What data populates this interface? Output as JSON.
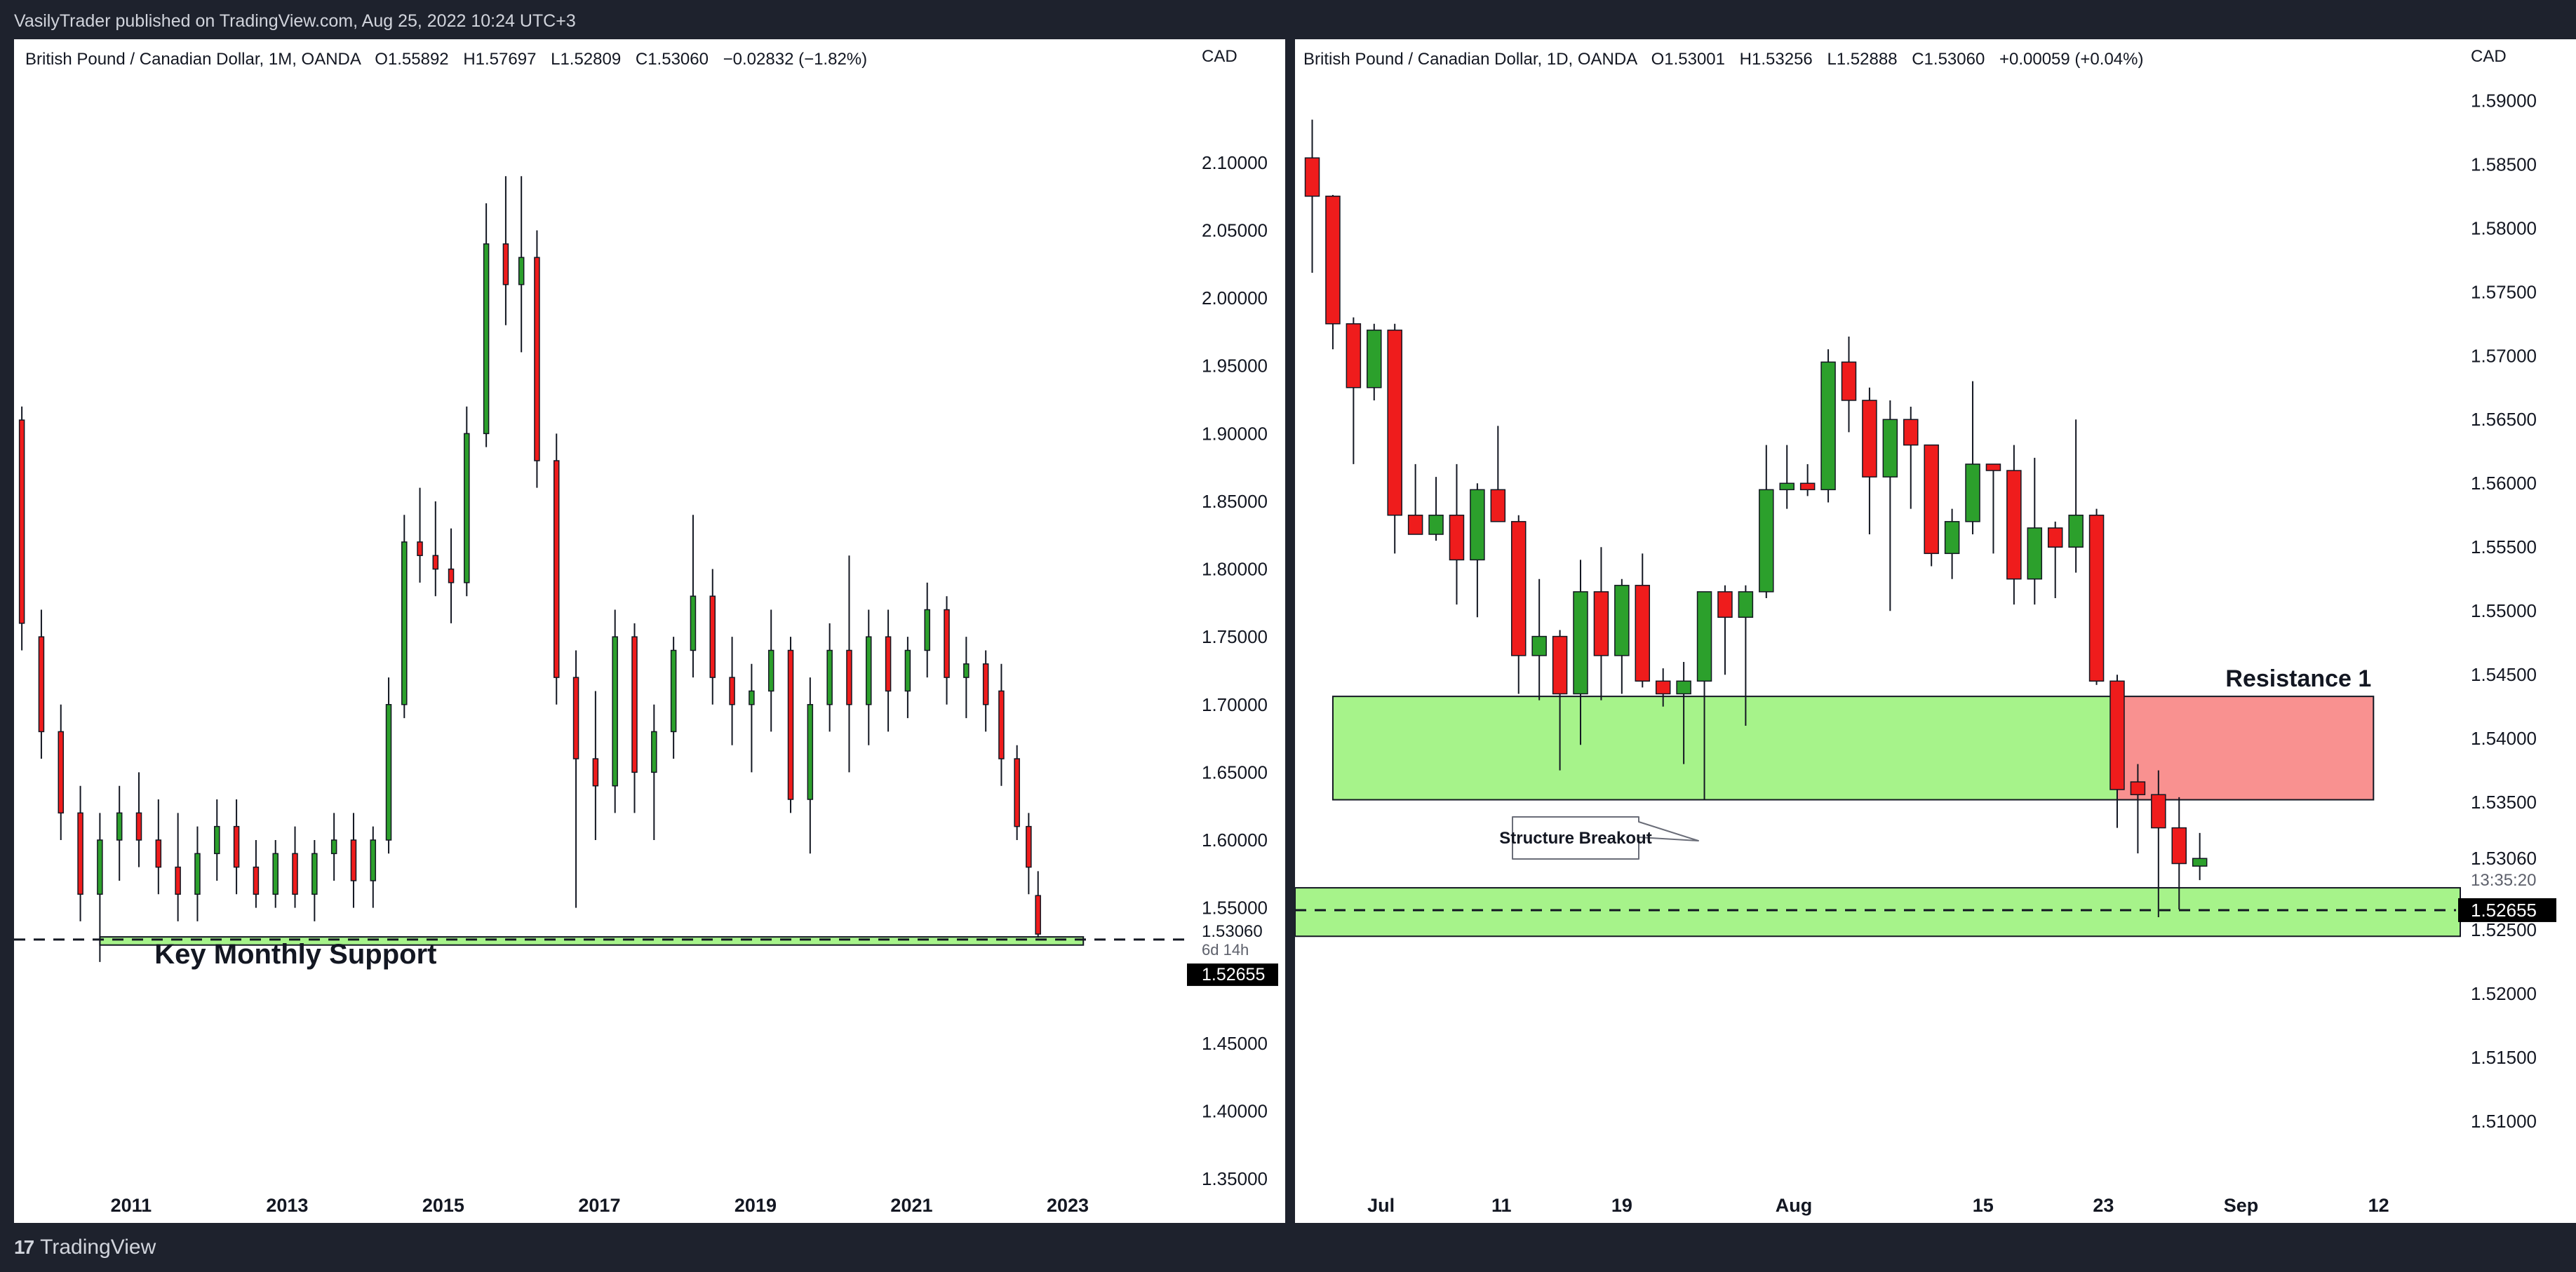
{
  "header": {
    "published_text": "VasilyTrader published on TradingView.com, Aug 25, 2022 10:24 UTC+3"
  },
  "footer": {
    "logo_text": "TradingView"
  },
  "colors": {
    "up": "#2ca02c",
    "down": "#ef1c1c",
    "support_zone": "#a6f38a",
    "resistance_zone": "#f99190",
    "price_tag_bg": "#000000"
  },
  "chart_data": [
    {
      "type": "candlestick",
      "title": "British Pound / Canadian Dollar, 1M, OANDA",
      "ohlc_text": {
        "open": "O1.55892",
        "high": "H1.57697",
        "low": "L1.52809",
        "close": "C1.53060",
        "change": "−0.02832 (−1.82%)"
      },
      "currency": "CAD",
      "yticks": [
        "2.10000",
        "2.05000",
        "2.00000",
        "1.95000",
        "1.90000",
        "1.85000",
        "1.80000",
        "1.75000",
        "1.70000",
        "1.65000",
        "1.60000",
        "1.55000",
        "1.45000",
        "1.40000",
        "1.35000"
      ],
      "xticks": [
        "2011",
        "2013",
        "2015",
        "2017",
        "2019",
        "2021",
        "2023"
      ],
      "ylim": [
        1.35,
        2.16
      ],
      "xlim": [
        2009.5,
        2024.6
      ],
      "last_price": "1.53060",
      "countdown": "6d 14h",
      "line_price": "1.52655",
      "support_zone": [
        1.5225,
        1.5285
      ],
      "annotations": [
        "Key Monthly Support"
      ],
      "candles": [
        {
          "t": 2009.6,
          "o": 1.91,
          "h": 1.92,
          "l": 1.74,
          "c": 1.76
        },
        {
          "t": 2009.85,
          "o": 1.75,
          "h": 1.77,
          "l": 1.66,
          "c": 1.68
        },
        {
          "t": 2010.1,
          "o": 1.68,
          "h": 1.7,
          "l": 1.6,
          "c": 1.62
        },
        {
          "t": 2010.35,
          "o": 1.62,
          "h": 1.64,
          "l": 1.54,
          "c": 1.56
        },
        {
          "t": 2010.6,
          "o": 1.56,
          "h": 1.62,
          "l": 1.51,
          "c": 1.6
        },
        {
          "t": 2010.85,
          "o": 1.6,
          "h": 1.64,
          "l": 1.57,
          "c": 1.62
        },
        {
          "t": 2011.1,
          "o": 1.62,
          "h": 1.65,
          "l": 1.58,
          "c": 1.6
        },
        {
          "t": 2011.35,
          "o": 1.6,
          "h": 1.63,
          "l": 1.56,
          "c": 1.58
        },
        {
          "t": 2011.6,
          "o": 1.58,
          "h": 1.62,
          "l": 1.54,
          "c": 1.56
        },
        {
          "t": 2011.85,
          "o": 1.56,
          "h": 1.61,
          "l": 1.54,
          "c": 1.59
        },
        {
          "t": 2012.1,
          "o": 1.59,
          "h": 1.63,
          "l": 1.57,
          "c": 1.61
        },
        {
          "t": 2012.35,
          "o": 1.61,
          "h": 1.63,
          "l": 1.56,
          "c": 1.58
        },
        {
          "t": 2012.6,
          "o": 1.58,
          "h": 1.6,
          "l": 1.55,
          "c": 1.56
        },
        {
          "t": 2012.85,
          "o": 1.56,
          "h": 1.6,
          "l": 1.55,
          "c": 1.59
        },
        {
          "t": 2013.1,
          "o": 1.59,
          "h": 1.61,
          "l": 1.55,
          "c": 1.56
        },
        {
          "t": 2013.35,
          "o": 1.56,
          "h": 1.6,
          "l": 1.54,
          "c": 1.59
        },
        {
          "t": 2013.6,
          "o": 1.59,
          "h": 1.62,
          "l": 1.57,
          "c": 1.6
        },
        {
          "t": 2013.85,
          "o": 1.6,
          "h": 1.62,
          "l": 1.55,
          "c": 1.57
        },
        {
          "t": 2014.1,
          "o": 1.57,
          "h": 1.61,
          "l": 1.55,
          "c": 1.6
        },
        {
          "t": 2014.3,
          "o": 1.6,
          "h": 1.72,
          "l": 1.59,
          "c": 1.7
        },
        {
          "t": 2014.5,
          "o": 1.7,
          "h": 1.84,
          "l": 1.69,
          "c": 1.82
        },
        {
          "t": 2014.7,
          "o": 1.82,
          "h": 1.86,
          "l": 1.79,
          "c": 1.81
        },
        {
          "t": 2014.9,
          "o": 1.81,
          "h": 1.85,
          "l": 1.78,
          "c": 1.8
        },
        {
          "t": 2015.1,
          "o": 1.8,
          "h": 1.83,
          "l": 1.76,
          "c": 1.79
        },
        {
          "t": 2015.3,
          "o": 1.79,
          "h": 1.92,
          "l": 1.78,
          "c": 1.9
        },
        {
          "t": 2015.55,
          "o": 1.9,
          "h": 2.07,
          "l": 1.89,
          "c": 2.04
        },
        {
          "t": 2015.8,
          "o": 2.04,
          "h": 2.09,
          "l": 1.98,
          "c": 2.01
        },
        {
          "t": 2016.0,
          "o": 2.01,
          "h": 2.09,
          "l": 1.96,
          "c": 2.03
        },
        {
          "t": 2016.2,
          "o": 2.03,
          "h": 2.05,
          "l": 1.86,
          "c": 1.88
        },
        {
          "t": 2016.45,
          "o": 1.88,
          "h": 1.9,
          "l": 1.7,
          "c": 1.72
        },
        {
          "t": 2016.7,
          "o": 1.72,
          "h": 1.74,
          "l": 1.55,
          "c": 1.66
        },
        {
          "t": 2016.95,
          "o": 1.66,
          "h": 1.71,
          "l": 1.6,
          "c": 1.64
        },
        {
          "t": 2017.2,
          "o": 1.64,
          "h": 1.77,
          "l": 1.62,
          "c": 1.75
        },
        {
          "t": 2017.45,
          "o": 1.75,
          "h": 1.76,
          "l": 1.62,
          "c": 1.65
        },
        {
          "t": 2017.7,
          "o": 1.65,
          "h": 1.7,
          "l": 1.6,
          "c": 1.68
        },
        {
          "t": 2017.95,
          "o": 1.68,
          "h": 1.75,
          "l": 1.66,
          "c": 1.74
        },
        {
          "t": 2018.2,
          "o": 1.74,
          "h": 1.84,
          "l": 1.72,
          "c": 1.78
        },
        {
          "t": 2018.45,
          "o": 1.78,
          "h": 1.8,
          "l": 1.7,
          "c": 1.72
        },
        {
          "t": 2018.7,
          "o": 1.72,
          "h": 1.75,
          "l": 1.67,
          "c": 1.7
        },
        {
          "t": 2018.95,
          "o": 1.7,
          "h": 1.73,
          "l": 1.65,
          "c": 1.71
        },
        {
          "t": 2019.2,
          "o": 1.71,
          "h": 1.77,
          "l": 1.68,
          "c": 1.74
        },
        {
          "t": 2019.45,
          "o": 1.74,
          "h": 1.75,
          "l": 1.62,
          "c": 1.63
        },
        {
          "t": 2019.7,
          "o": 1.63,
          "h": 1.72,
          "l": 1.59,
          "c": 1.7
        },
        {
          "t": 2019.95,
          "o": 1.7,
          "h": 1.76,
          "l": 1.68,
          "c": 1.74
        },
        {
          "t": 2020.2,
          "o": 1.74,
          "h": 1.81,
          "l": 1.65,
          "c": 1.7
        },
        {
          "t": 2020.45,
          "o": 1.7,
          "h": 1.77,
          "l": 1.67,
          "c": 1.75
        },
        {
          "t": 2020.7,
          "o": 1.75,
          "h": 1.77,
          "l": 1.68,
          "c": 1.71
        },
        {
          "t": 2020.95,
          "o": 1.71,
          "h": 1.75,
          "l": 1.69,
          "c": 1.74
        },
        {
          "t": 2021.2,
          "o": 1.74,
          "h": 1.79,
          "l": 1.72,
          "c": 1.77
        },
        {
          "t": 2021.45,
          "o": 1.77,
          "h": 1.78,
          "l": 1.7,
          "c": 1.72
        },
        {
          "t": 2021.7,
          "o": 1.72,
          "h": 1.75,
          "l": 1.69,
          "c": 1.73
        },
        {
          "t": 2021.95,
          "o": 1.73,
          "h": 1.74,
          "l": 1.68,
          "c": 1.7
        },
        {
          "t": 2022.15,
          "o": 1.71,
          "h": 1.73,
          "l": 1.64,
          "c": 1.66
        },
        {
          "t": 2022.35,
          "o": 1.66,
          "h": 1.67,
          "l": 1.6,
          "c": 1.61
        },
        {
          "t": 2022.5,
          "o": 1.61,
          "h": 1.62,
          "l": 1.56,
          "c": 1.58
        },
        {
          "t": 2022.62,
          "o": 1.559,
          "h": 1.577,
          "l": 1.528,
          "c": 1.5306
        }
      ]
    },
    {
      "type": "candlestick",
      "title": "British Pound / Canadian Dollar, 1D, OANDA",
      "ohlc_text": {
        "open": "O1.53001",
        "high": "H1.53256",
        "low": "L1.52888",
        "close": "C1.53060",
        "change": "+0.00059 (+0.04%)"
      },
      "currency": "CAD",
      "yticks": [
        "1.59000",
        "1.58500",
        "1.58000",
        "1.57500",
        "1.57000",
        "1.56500",
        "1.56000",
        "1.55500",
        "1.55000",
        "1.54500",
        "1.54000",
        "1.53500",
        "1.53060",
        "1.52500",
        "1.52000",
        "1.51500",
        "1.51000"
      ],
      "xticks": [
        "Jul",
        "11",
        "19",
        "Aug",
        "15",
        "23",
        "Sep",
        "12"
      ],
      "xtick_pos": [
        5,
        12,
        19,
        29,
        40,
        47,
        55,
        63
      ],
      "ylim": [
        1.5055,
        1.5915
      ],
      "xlim": [
        0,
        67.5
      ],
      "last_price": "1.53060",
      "countdown": "13:35:20",
      "line_price": "1.52655",
      "support_zone": [
        1.5245,
        1.5283
      ],
      "range_zone": [
        1.5352,
        1.5433
      ],
      "resistance_zone": [
        1.5352,
        1.5433
      ],
      "annotations": [
        "Resistance 1",
        "Structure Breakout"
      ],
      "candles": [
        {
          "t": 1,
          "o": 1.5855,
          "h": 1.5885,
          "l": 1.5765,
          "c": 1.5825
        },
        {
          "t": 2.2,
          "o": 1.5825,
          "h": 1.5826,
          "l": 1.5705,
          "c": 1.5725
        },
        {
          "t": 3.4,
          "o": 1.5725,
          "h": 1.573,
          "l": 1.5615,
          "c": 1.5675
        },
        {
          "t": 4.6,
          "o": 1.5675,
          "h": 1.5725,
          "l": 1.5665,
          "c": 1.572
        },
        {
          "t": 5.8,
          "o": 1.572,
          "h": 1.5725,
          "l": 1.5545,
          "c": 1.5575
        },
        {
          "t": 7.0,
          "o": 1.5575,
          "h": 1.5615,
          "l": 1.556,
          "c": 1.556
        },
        {
          "t": 8.2,
          "o": 1.556,
          "h": 1.5605,
          "l": 1.5555,
          "c": 1.5575
        },
        {
          "t": 9.4,
          "o": 1.5575,
          "h": 1.5615,
          "l": 1.5505,
          "c": 1.554
        },
        {
          "t": 10.6,
          "o": 1.554,
          "h": 1.56,
          "l": 1.5495,
          "c": 1.5595
        },
        {
          "t": 11.8,
          "o": 1.5595,
          "h": 1.5645,
          "l": 1.557,
          "c": 1.557
        },
        {
          "t": 13.0,
          "o": 1.557,
          "h": 1.5575,
          "l": 1.5435,
          "c": 1.5465
        },
        {
          "t": 14.2,
          "o": 1.5465,
          "h": 1.5525,
          "l": 1.543,
          "c": 1.548
        },
        {
          "t": 15.4,
          "o": 1.548,
          "h": 1.5485,
          "l": 1.5375,
          "c": 1.5435
        },
        {
          "t": 16.6,
          "o": 1.5435,
          "h": 1.554,
          "l": 1.5395,
          "c": 1.5515
        },
        {
          "t": 17.8,
          "o": 1.5515,
          "h": 1.555,
          "l": 1.543,
          "c": 1.5465
        },
        {
          "t": 19.0,
          "o": 1.5465,
          "h": 1.5525,
          "l": 1.5435,
          "c": 1.552
        },
        {
          "t": 20.2,
          "o": 1.552,
          "h": 1.5545,
          "l": 1.544,
          "c": 1.5445
        },
        {
          "t": 21.4,
          "o": 1.5445,
          "h": 1.5455,
          "l": 1.5425,
          "c": 1.5435
        },
        {
          "t": 22.6,
          "o": 1.5435,
          "h": 1.546,
          "l": 1.538,
          "c": 1.5445
        },
        {
          "t": 23.8,
          "o": 1.5445,
          "h": 1.5515,
          "l": 1.5352,
          "c": 1.5515
        },
        {
          "t": 25.0,
          "o": 1.5515,
          "h": 1.552,
          "l": 1.545,
          "c": 1.5495
        },
        {
          "t": 26.2,
          "o": 1.5495,
          "h": 1.552,
          "l": 1.541,
          "c": 1.5515
        },
        {
          "t": 27.4,
          "o": 1.5515,
          "h": 1.563,
          "l": 1.551,
          "c": 1.5595
        },
        {
          "t": 28.6,
          "o": 1.5595,
          "h": 1.563,
          "l": 1.558,
          "c": 1.56
        },
        {
          "t": 29.8,
          "o": 1.56,
          "h": 1.5615,
          "l": 1.559,
          "c": 1.5595
        },
        {
          "t": 31.0,
          "o": 1.5595,
          "h": 1.5705,
          "l": 1.5585,
          "c": 1.5695
        },
        {
          "t": 32.2,
          "o": 1.5695,
          "h": 1.5715,
          "l": 1.564,
          "c": 1.5665
        },
        {
          "t": 33.4,
          "o": 1.5665,
          "h": 1.5675,
          "l": 1.556,
          "c": 1.5605
        },
        {
          "t": 34.6,
          "o": 1.5605,
          "h": 1.5665,
          "l": 1.55,
          "c": 1.565
        },
        {
          "t": 35.8,
          "o": 1.565,
          "h": 1.566,
          "l": 1.558,
          "c": 1.563
        },
        {
          "t": 37.0,
          "o": 1.563,
          "h": 1.563,
          "l": 1.5535,
          "c": 1.5545
        },
        {
          "t": 38.2,
          "o": 1.5545,
          "h": 1.558,
          "l": 1.5525,
          "c": 1.557
        },
        {
          "t": 39.4,
          "o": 1.557,
          "h": 1.568,
          "l": 1.556,
          "c": 1.5615
        },
        {
          "t": 40.6,
          "o": 1.5615,
          "h": 1.5615,
          "l": 1.5545,
          "c": 1.561
        },
        {
          "t": 41.8,
          "o": 1.561,
          "h": 1.563,
          "l": 1.5505,
          "c": 1.5525
        },
        {
          "t": 43.0,
          "o": 1.5525,
          "h": 1.562,
          "l": 1.5505,
          "c": 1.5565
        },
        {
          "t": 44.2,
          "o": 1.5565,
          "h": 1.557,
          "l": 1.551,
          "c": 1.555
        },
        {
          "t": 45.4,
          "o": 1.555,
          "h": 1.565,
          "l": 1.553,
          "c": 1.5575
        },
        {
          "t": 46.6,
          "o": 1.5575,
          "h": 1.558,
          "l": 1.5442,
          "c": 1.5445
        },
        {
          "t": 47.8,
          "o": 1.5445,
          "h": 1.545,
          "l": 1.533,
          "c": 1.536
        },
        {
          "t": 49.0,
          "o": 1.5366,
          "h": 1.538,
          "l": 1.531,
          "c": 1.5356
        },
        {
          "t": 50.2,
          "o": 1.5356,
          "h": 1.5375,
          "l": 1.526,
          "c": 1.533
        },
        {
          "t": 51.4,
          "o": 1.533,
          "h": 1.5354,
          "l": 1.5266,
          "c": 1.5302
        },
        {
          "t": 52.6,
          "o": 1.53,
          "h": 1.5326,
          "l": 1.5289,
          "c": 1.5306
        }
      ]
    }
  ]
}
